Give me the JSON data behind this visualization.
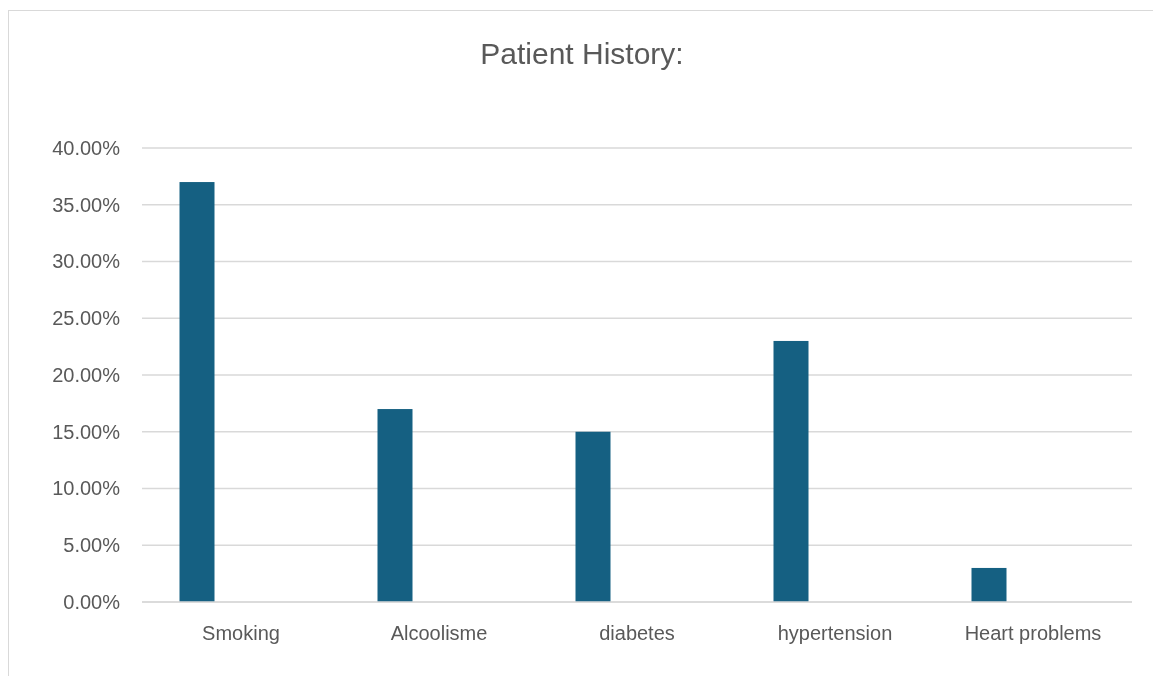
{
  "chart_data": {
    "type": "bar",
    "title": "Patient History:",
    "categories": [
      "Smoking",
      "Alcoolisme",
      "diabetes",
      "hypertension",
      "Heart problems"
    ],
    "values": [
      37,
      17,
      15,
      23,
      3
    ],
    "color": "#156082",
    "ylim": [
      0,
      40
    ],
    "yticks": [
      {
        "value": 0,
        "label": "0.00%"
      },
      {
        "value": 5,
        "label": "5.00%"
      },
      {
        "value": 10,
        "label": "10.00%"
      },
      {
        "value": 15,
        "label": "15.00%"
      },
      {
        "value": 20,
        "label": "20.00%"
      },
      {
        "value": 25,
        "label": "25.00%"
      },
      {
        "value": 30,
        "label": "30.00%"
      },
      {
        "value": 35,
        "label": "35.00%"
      },
      {
        "value": 40,
        "label": "40.00%"
      }
    ],
    "grid": "y"
  }
}
